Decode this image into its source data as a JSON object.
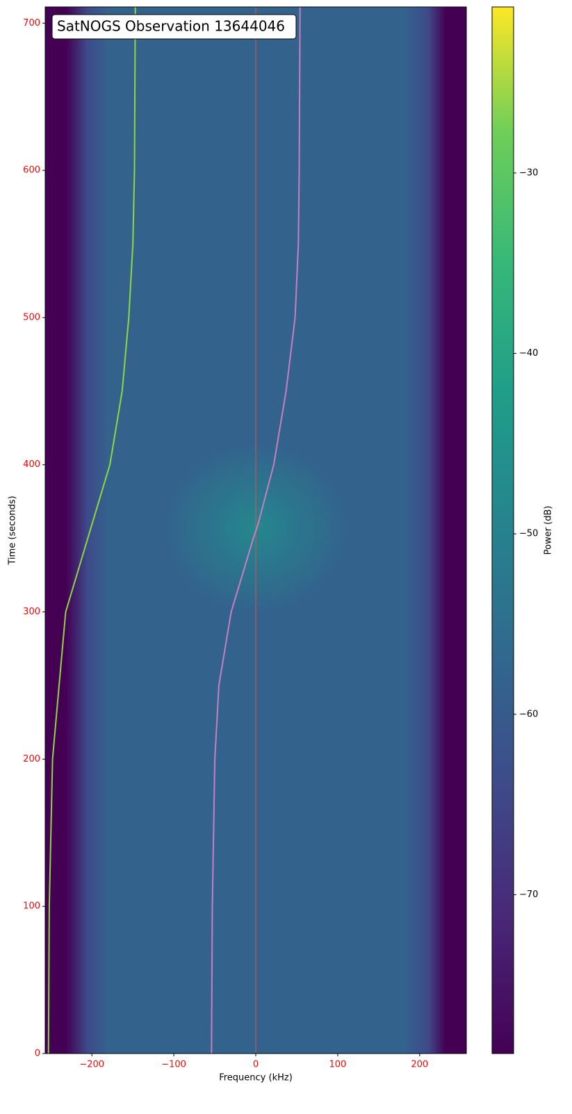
{
  "chart_data": {
    "type": "spectrogram",
    "title": "SatNOGS Observation 13644046",
    "xlabel": "Frequency (kHz)",
    "ylabel": "Time (seconds)",
    "colorbar_label": "Power (dB)",
    "xlim": [
      -257,
      257
    ],
    "xticks": [
      {
        "value": -200,
        "label": "−200"
      },
      {
        "value": -100,
        "label": "−100"
      },
      0,
      100,
      200
    ],
    "ylim": [
      0,
      711
    ],
    "yticks": [
      0,
      100,
      200,
      300,
      400,
      500,
      600,
      700
    ],
    "clim": [
      -78.8,
      -20.8
    ],
    "cticks": [
      {
        "value": -30,
        "label": "−30"
      },
      {
        "value": -40,
        "label": "−40"
      },
      {
        "value": -50,
        "label": "−50"
      },
      {
        "value": -60,
        "label": "−60"
      },
      {
        "value": -70,
        "label": "−70"
      }
    ],
    "tick_label_color": "#ff0000",
    "center_line": 0,
    "center_line_color": "#d9534f",
    "traces": [
      {
        "color": "#8fd744",
        "x": [
          -253,
          -252,
          -248,
          -240,
          -232,
          -205,
          -178,
          -163,
          -155,
          -150,
          -148,
          -147
        ],
        "y": [
          0,
          100,
          200,
          250,
          300,
          350,
          400,
          450,
          500,
          550,
          600,
          711
        ]
      },
      {
        "color": "#c77fc0",
        "x": [
          -54,
          -53,
          -50,
          -45,
          -30,
          -3,
          3,
          22,
          37,
          48,
          52,
          53,
          54
        ],
        "y": [
          0,
          100,
          200,
          250,
          300,
          350,
          360,
          400,
          450,
          500,
          550,
          600,
          711
        ]
      }
    ]
  }
}
